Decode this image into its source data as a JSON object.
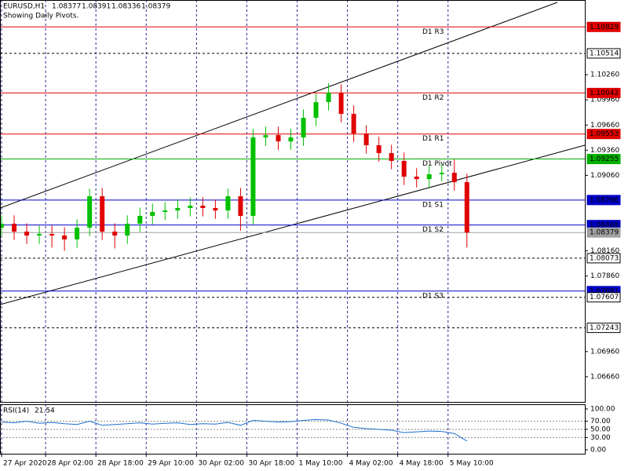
{
  "chart_data": {
    "type": "candlestick",
    "symbol": "EURUSD,H1",
    "ohlc_header": [
      1.08377,
      1.08391,
      1.08336,
      1.08379
    ],
    "subtitle": "Showing Daily Pivots.",
    "x": [
      -14,
      -10,
      -6,
      -2,
      2,
      6,
      10,
      14,
      18,
      22,
      26,
      30,
      34,
      38,
      42,
      46,
      50,
      54,
      58,
      62,
      66,
      70,
      74,
      78,
      82,
      86,
      90,
      94,
      98,
      102,
      106,
      110,
      114,
      118,
      122,
      126,
      130,
      134
    ],
    "open": [
      1.08437,
      1.08484,
      1.0839,
      1.08343,
      1.08362,
      1.08343,
      1.08297,
      1.08437,
      1.08811,
      1.0839,
      1.08343,
      1.08484,
      1.08577,
      1.08624,
      1.08642,
      1.08671,
      1.08699,
      1.08671,
      1.08642,
      1.08811,
      1.08577,
      1.09512,
      1.0954,
      1.09465,
      1.09512,
      1.09746,
      1.09933,
      1.10045,
      1.09793,
      1.09559,
      1.09419,
      1.09325,
      1.09232,
      1.09045,
      1.09016,
      1.09073,
      1.09091,
      1.08979
    ],
    "high": [
      1.08584,
      1.08584,
      1.0849,
      1.08462,
      1.08462,
      1.08443,
      1.08537,
      1.089,
      1.08911,
      1.0849,
      1.08584,
      1.08677,
      1.08724,
      1.08742,
      1.08771,
      1.08799,
      1.08799,
      1.08771,
      1.089,
      1.08911,
      1.09612,
      1.0964,
      1.0964,
      1.09612,
      1.09846,
      1.10033,
      1.1016,
      1.10145,
      1.09893,
      1.09659,
      1.09519,
      1.09425,
      1.09332,
      1.09145,
      1.09173,
      1.09191,
      1.0925,
      1.09079
    ],
    "low": [
      1.08337,
      1.0829,
      1.08243,
      1.08243,
      1.082,
      1.0816,
      1.08197,
      1.08337,
      1.0829,
      1.0819,
      1.08243,
      1.08384,
      1.08477,
      1.08524,
      1.08542,
      1.08571,
      1.08571,
      1.08542,
      1.08542,
      1.084,
      1.08477,
      1.09412,
      1.09365,
      1.09365,
      1.09412,
      1.09646,
      1.09833,
      1.09693,
      1.09459,
      1.09319,
      1.09225,
      1.09132,
      1.08945,
      1.08916,
      1.08916,
      1.08991,
      1.08879,
      1.082
    ],
    "close": [
      1.08484,
      1.0839,
      1.08343,
      1.08362,
      1.08343,
      1.08297,
      1.08437,
      1.08811,
      1.0839,
      1.08343,
      1.08484,
      1.08577,
      1.08624,
      1.08642,
      1.08671,
      1.08699,
      1.08671,
      1.08642,
      1.08811,
      1.08577,
      1.09512,
      1.0954,
      1.09465,
      1.09512,
      1.09746,
      1.09933,
      1.10045,
      1.09793,
      1.09559,
      1.09419,
      1.09325,
      1.09232,
      1.09045,
      1.09016,
      1.09073,
      1.09091,
      1.08979,
      1.08379
    ],
    "up_color": "#00c000",
    "down_color": "#e00000",
    "xlim": [
      -14.5,
      171.5
    ],
    "ylim": [
      1.0636,
      1.1115
    ],
    "xgrid": true,
    "xticks": [
      {
        "value": -14,
        "label": "27 Apr 2020"
      },
      {
        "value": 0,
        "label": "28 Apr 02:00"
      },
      {
        "value": 16,
        "label": "28 Apr 18:00"
      },
      {
        "value": 32,
        "label": "29 Apr 10:00"
      },
      {
        "value": 48,
        "label": "30 Apr 02:00"
      },
      {
        "value": 64,
        "label": "30 Apr 18:00"
      },
      {
        "value": 80,
        "label": "1 May 10:00"
      },
      {
        "value": 96,
        "label": "4 May 02:00"
      },
      {
        "value": 112,
        "label": "4 May 18:00"
      },
      {
        "value": 128,
        "label": "5 May 10:00"
      }
    ],
    "yticks": [
      {
        "value": 1.1026,
        "label": "1.10260"
      },
      {
        "value": 1.0996,
        "label": "1.09960"
      },
      {
        "value": 1.0966,
        "label": "1.09660"
      },
      {
        "value": 1.0936,
        "label": "1.09360"
      },
      {
        "value": 1.0906,
        "label": "1.09060"
      },
      {
        "value": 1.0816,
        "label": "1.08160"
      },
      {
        "value": 1.0786,
        "label": "1.07860"
      },
      {
        "value": 1.0696,
        "label": "1.06960"
      },
      {
        "value": 1.0666,
        "label": "1.06660"
      }
    ],
    "levels": [
      {
        "name": "D1 R3",
        "value": 1.10829,
        "color": "#e00000",
        "dashed": false
      },
      {
        "value": 1.10514,
        "color": "#000000",
        "dashed": true
      },
      {
        "name": "D1 R2",
        "value": 1.10042,
        "color": "#e00000",
        "dashed": false
      },
      {
        "name": "D1 R1",
        "value": 1.09553,
        "color": "#e00000",
        "dashed": false
      },
      {
        "name": "D1 Pivot",
        "value": 1.09255,
        "color": "#00b000",
        "dashed": false
      },
      {
        "name": "D1 S1",
        "value": 1.08766,
        "color": "#0000c8",
        "dashed": false
      },
      {
        "name": "D1 S2",
        "value": 1.08468,
        "color": "#0000c8",
        "dashed": false
      },
      {
        "value": 1.08379,
        "color": "#a0a0a0",
        "dashed": false
      },
      {
        "value": 1.08073,
        "color": "#000000",
        "dashed": true
      },
      {
        "name": "D1 S3",
        "value": 1.07681,
        "color": "#0000c8",
        "dashed": false
      },
      {
        "value": 1.07607,
        "color": "#000000",
        "dashed": true
      },
      {
        "value": 1.07243,
        "color": "#000000",
        "dashed": true
      }
    ],
    "indicator": {
      "name": "RSI(14)",
      "value": 21.54,
      "color": "#1e6fd0",
      "values": [
        68,
        66,
        70,
        65,
        67,
        64,
        62,
        70,
        60,
        62,
        64,
        66,
        63,
        65,
        66,
        62,
        64,
        63,
        67,
        60,
        72,
        70,
        68,
        69,
        72,
        74,
        73,
        65,
        55,
        52,
        50,
        48,
        42,
        44,
        46,
        45,
        40,
        21.54
      ],
      "ylim": [
        -9.6,
        111.5
      ],
      "yticks": [
        {
          "value": 100,
          "label": "100.00"
        },
        {
          "value": 70,
          "label": "70.00"
        },
        {
          "value": 50,
          "label": "50.00"
        },
        {
          "value": 30,
          "label": "30.00"
        },
        {
          "value": 0,
          "label": "0.00"
        }
      ]
    }
  }
}
